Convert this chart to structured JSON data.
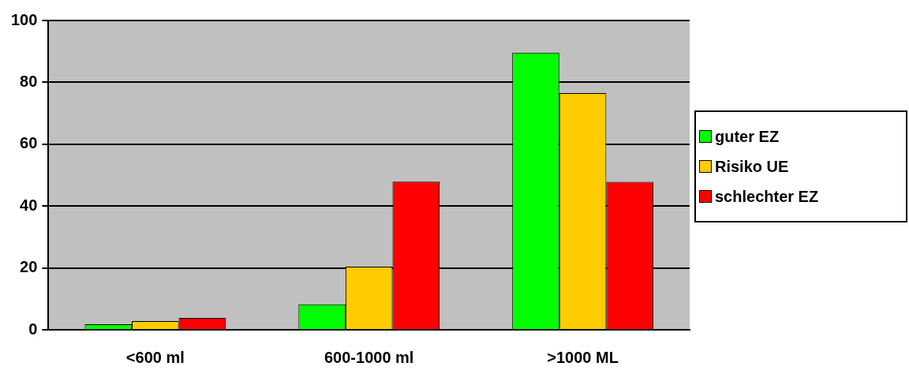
{
  "chart_data": {
    "type": "bar",
    "categories": [
      "<600 ml",
      "600-1000 ml",
      ">1000 ML"
    ],
    "series": [
      {
        "name": "guter EZ",
        "color": "#00ff00",
        "values": [
          1.8,
          8.2,
          89.6
        ]
      },
      {
        "name": "Risiko UE",
        "color": "#ffcc00",
        "values": [
          2.8,
          20.4,
          76.5
        ]
      },
      {
        "name": "schlechter EZ",
        "color": "#ff0000",
        "values": [
          3.8,
          47.9,
          47.8
        ]
      }
    ],
    "ylim": [
      0,
      100
    ],
    "yticks": [
      0,
      20,
      40,
      60,
      80,
      100
    ],
    "grid": "y",
    "legend": "right"
  }
}
